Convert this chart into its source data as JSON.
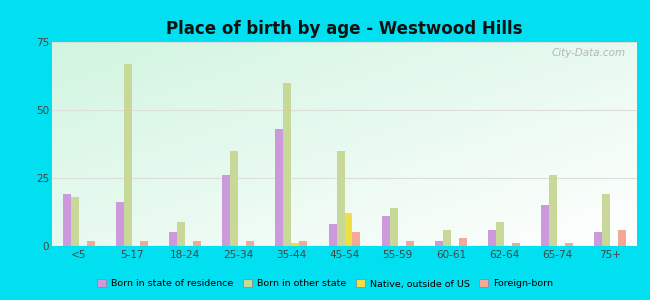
{
  "title": "Place of birth by age - Westwood Hills",
  "categories": [
    "<5",
    "5-17",
    "18-24",
    "25-34",
    "35-44",
    "45-54",
    "55-59",
    "60-61",
    "62-64",
    "65-74",
    "75+"
  ],
  "series": {
    "Born in state of residence": [
      19,
      16,
      5,
      26,
      43,
      8,
      11,
      2,
      6,
      15,
      5
    ],
    "Born in other state": [
      18,
      67,
      9,
      35,
      60,
      35,
      14,
      6,
      9,
      26,
      19
    ],
    "Native, outside of US": [
      0,
      0,
      0,
      0,
      1,
      12,
      0,
      0,
      0,
      0,
      0
    ],
    "Foreign-born": [
      2,
      2,
      2,
      2,
      2,
      5,
      2,
      3,
      1,
      1,
      6
    ]
  },
  "colors": {
    "Born in state of residence": "#cc99dd",
    "Born in other state": "#c8d898",
    "Native, outside of US": "#eedf44",
    "Foreign-born": "#f4a898"
  },
  "ylim": [
    0,
    75
  ],
  "yticks": [
    0,
    25,
    50,
    75
  ],
  "outer_background": "#00e0f0",
  "grid_color": "#dddddd",
  "watermark": "City-Data.com",
  "legend_labels": [
    "Born in state of residence",
    "Born in other state",
    "Native, outside of US",
    "Foreign-born"
  ]
}
